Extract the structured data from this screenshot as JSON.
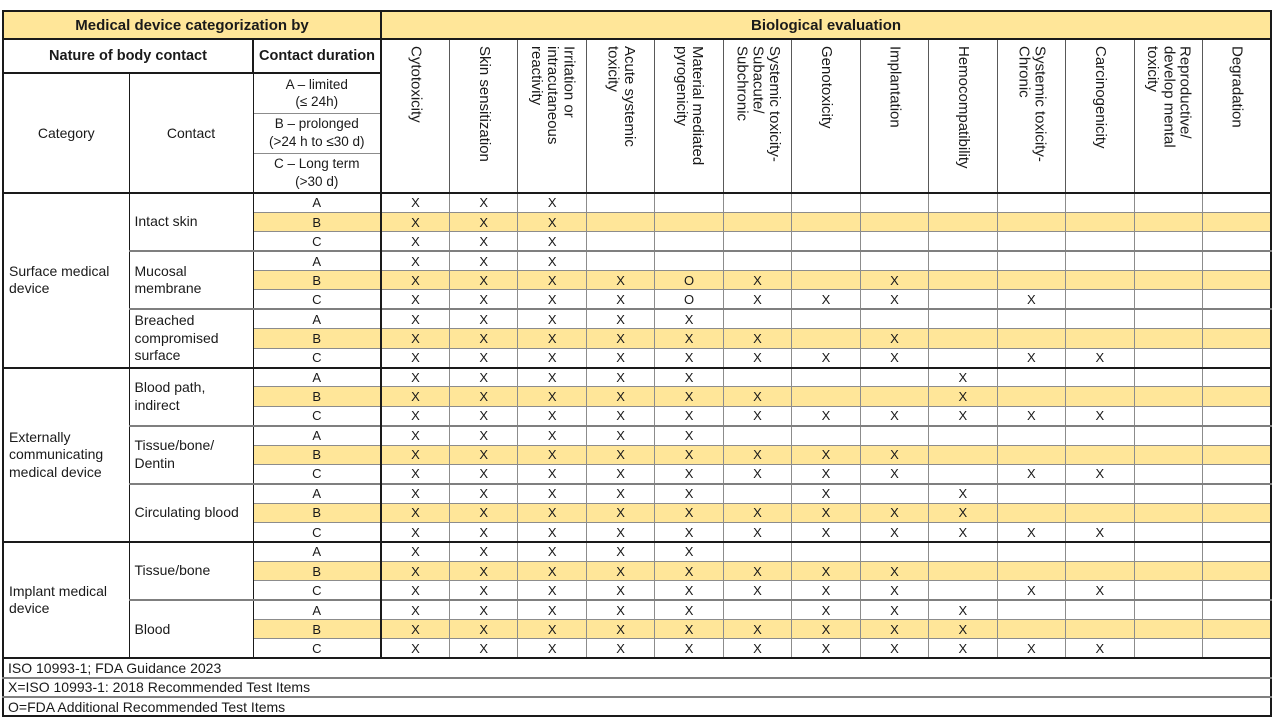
{
  "colors": {
    "highlight_fill": "#ffe699",
    "header_fill": "#ffe699",
    "grid_dark": "#1a1a1a",
    "grid_gray": "#8c8c8c"
  },
  "header": {
    "left_title": "Medical device categorization by",
    "right_title": "Biological evaluation",
    "nature_label": "Nature of body contact",
    "duration_label": "Contact duration",
    "category_label": "Category",
    "contact_label": "Contact",
    "durations": [
      "A – limited\n(≤ 24h)",
      "B – prolonged\n(>24 h to ≤30 d)",
      "C – Long term\n(>30 d)"
    ]
  },
  "columns": [
    "Cytotoxicity",
    "Skin sensitization",
    "Irritation or\nintracutaneous\nreactivity",
    "Acute systemic\ntoxicity",
    "Material mediated\npyrogenicity",
    "Systemic toxicity-\nSubacute/\nSubchronic",
    "Genotoxicity",
    "Implantation",
    "Hemocompatibility",
    "Systemic toxicity-\nChronic",
    "Carcinogenicity",
    "Reproductive/\ndevelop mental\ntoxicity",
    "Degradation"
  ],
  "groups": [
    {
      "category": "Surface medical device",
      "contacts": [
        {
          "name": "Intact skin",
          "rows": [
            {
              "duration": "A",
              "marks": [
                "X",
                "X",
                "X",
                "",
                "",
                "",
                "",
                "",
                "",
                "",
                "",
                "",
                ""
              ]
            },
            {
              "duration": "B",
              "marks": [
                "X",
                "X",
                "X",
                "",
                "",
                "",
                "",
                "",
                "",
                "",
                "",
                "",
                ""
              ]
            },
            {
              "duration": "C",
              "marks": [
                "X",
                "X",
                "X",
                "",
                "",
                "",
                "",
                "",
                "",
                "",
                "",
                "",
                ""
              ]
            }
          ]
        },
        {
          "name": "Mucosal membrane",
          "rows": [
            {
              "duration": "A",
              "marks": [
                "X",
                "X",
                "X",
                "",
                "",
                "",
                "",
                "",
                "",
                "",
                "",
                "",
                ""
              ]
            },
            {
              "duration": "B",
              "marks": [
                "X",
                "X",
                "X",
                "X",
                "O",
                "X",
                "",
                "X",
                "",
                "",
                "",
                "",
                ""
              ]
            },
            {
              "duration": "C",
              "marks": [
                "X",
                "X",
                "X",
                "X",
                "O",
                "X",
                "X",
                "X",
                "",
                "X",
                "",
                "",
                ""
              ]
            }
          ]
        },
        {
          "name": "Breached compromised surface",
          "rows": [
            {
              "duration": "A",
              "marks": [
                "X",
                "X",
                "X",
                "X",
                "X",
                "",
                "",
                "",
                "",
                "",
                "",
                "",
                ""
              ]
            },
            {
              "duration": "B",
              "marks": [
                "X",
                "X",
                "X",
                "X",
                "X",
                "X",
                "",
                "X",
                "",
                "",
                "",
                "",
                ""
              ]
            },
            {
              "duration": "C",
              "marks": [
                "X",
                "X",
                "X",
                "X",
                "X",
                "X",
                "X",
                "X",
                "",
                "X",
                "X",
                "",
                ""
              ]
            }
          ]
        }
      ]
    },
    {
      "category": "Externally communicating medical device",
      "contacts": [
        {
          "name": "Blood path, indirect",
          "rows": [
            {
              "duration": "A",
              "marks": [
                "X",
                "X",
                "X",
                "X",
                "X",
                "",
                "",
                "",
                "X",
                "",
                "",
                "",
                ""
              ]
            },
            {
              "duration": "B",
              "marks": [
                "X",
                "X",
                "X",
                "X",
                "X",
                "X",
                "",
                "",
                "X",
                "",
                "",
                "",
                ""
              ]
            },
            {
              "duration": "C",
              "marks": [
                "X",
                "X",
                "X",
                "X",
                "X",
                "X",
                "X",
                "X",
                "X",
                "X",
                "X",
                "",
                ""
              ]
            }
          ]
        },
        {
          "name": "Tissue/bone/ Dentin",
          "rows": [
            {
              "duration": "A",
              "marks": [
                "X",
                "X",
                "X",
                "X",
                "X",
                "",
                "",
                "",
                "",
                "",
                "",
                "",
                ""
              ]
            },
            {
              "duration": "B",
              "marks": [
                "X",
                "X",
                "X",
                "X",
                "X",
                "X",
                "X",
                "X",
                "",
                "",
                "",
                "",
                ""
              ]
            },
            {
              "duration": "C",
              "marks": [
                "X",
                "X",
                "X",
                "X",
                "X",
                "X",
                "X",
                "X",
                "",
                "X",
                "X",
                "",
                ""
              ]
            }
          ]
        },
        {
          "name": "Circulating blood",
          "rows": [
            {
              "duration": "A",
              "marks": [
                "X",
                "X",
                "X",
                "X",
                "X",
                "",
                "X",
                "",
                "X",
                "",
                "",
                "",
                ""
              ]
            },
            {
              "duration": "B",
              "marks": [
                "X",
                "X",
                "X",
                "X",
                "X",
                "X",
                "X",
                "X",
                "X",
                "",
                "",
                "",
                ""
              ]
            },
            {
              "duration": "C",
              "marks": [
                "X",
                "X",
                "X",
                "X",
                "X",
                "X",
                "X",
                "X",
                "X",
                "X",
                "X",
                "",
                ""
              ]
            }
          ]
        }
      ]
    },
    {
      "category": "Implant medical device",
      "contacts": [
        {
          "name": "Tissue/bone",
          "rows": [
            {
              "duration": "A",
              "marks": [
                "X",
                "X",
                "X",
                "X",
                "X",
                "",
                "",
                "",
                "",
                "",
                "",
                "",
                ""
              ]
            },
            {
              "duration": "B",
              "marks": [
                "X",
                "X",
                "X",
                "X",
                "X",
                "X",
                "X",
                "X",
                "",
                "",
                "",
                "",
                ""
              ]
            },
            {
              "duration": "C",
              "marks": [
                "X",
                "X",
                "X",
                "X",
                "X",
                "X",
                "X",
                "X",
                "",
                "X",
                "X",
                "",
                ""
              ]
            }
          ]
        },
        {
          "name": "Blood",
          "rows": [
            {
              "duration": "A",
              "marks": [
                "X",
                "X",
                "X",
                "X",
                "X",
                "",
                "X",
                "X",
                "X",
                "",
                "",
                "",
                ""
              ]
            },
            {
              "duration": "B",
              "marks": [
                "X",
                "X",
                "X",
                "X",
                "X",
                "X",
                "X",
                "X",
                "X",
                "",
                "",
                "",
                ""
              ]
            },
            {
              "duration": "C",
              "marks": [
                "X",
                "X",
                "X",
                "X",
                "X",
                "X",
                "X",
                "X",
                "X",
                "X",
                "X",
                "",
                ""
              ]
            }
          ]
        }
      ]
    }
  ],
  "footers": [
    "ISO 10993-1; FDA Guidance 2023",
    "X=ISO 10993-1: 2018 Recommended Test Items",
    "O=FDA Additional Recommended Test Items"
  ]
}
